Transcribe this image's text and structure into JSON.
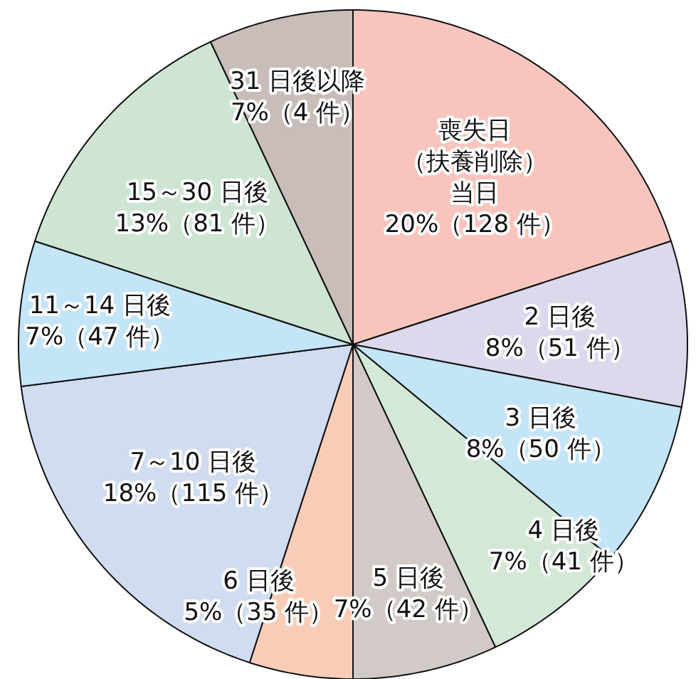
{
  "chart_data": {
    "type": "pie",
    "categories": [
      "喪失日（扶養削除）当日",
      "2 日後",
      "3 日後",
      "4 日後",
      "5 日後",
      "6 日後",
      "7～10 日後",
      "11～14 日後",
      "15～30 日後",
      "31 日後以降"
    ],
    "values": [
      20,
      8,
      8,
      7,
      7,
      5,
      18,
      7,
      13,
      7
    ],
    "value_labels": [
      "20%（128 件）",
      "8%（51 件）",
      "8%（50 件）",
      "7%（41 件）",
      "7%（42 件）",
      "5%（35 件）",
      "18%（115 件）",
      "7%（47 件）",
      "13%（81 件）",
      "7%（4 件）"
    ],
    "colors": [
      "#f7c5bd",
      "#dcd9ec",
      "#c4e4f7",
      "#d4e8d8",
      "#d2cac6",
      "#f8cdb8",
      "#d0dcf0",
      "#c4e4f7",
      "#cde5d2",
      "#c8bdb8"
    ]
  }
}
